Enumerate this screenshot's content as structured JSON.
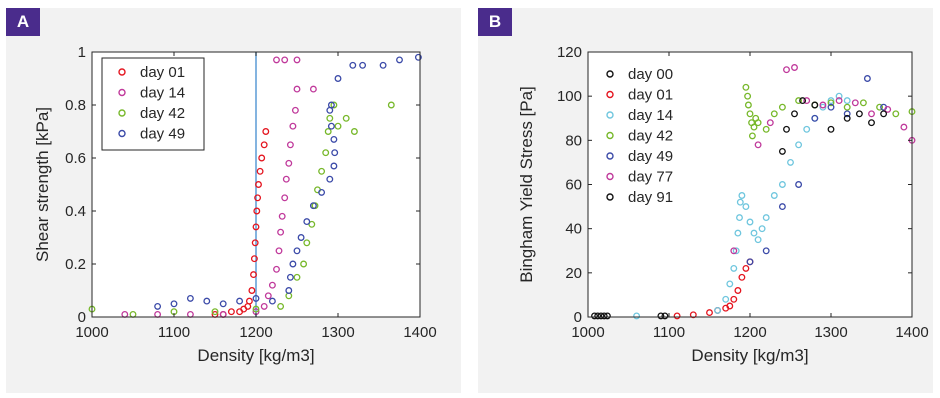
{
  "chart_data": [
    {
      "panel_label": "A",
      "type": "scatter",
      "xlabel": "Density [kg/m3]",
      "ylabel": "Shear strength [kPa]",
      "xlim": [
        1000,
        1400
      ],
      "ylim": [
        0,
        1
      ],
      "xticks": [
        1000,
        1100,
        1200,
        1300,
        1400
      ],
      "yticks": [
        0,
        0.2,
        0.4,
        0.6,
        0.8,
        1
      ],
      "xtick_labels": [
        "1000",
        "1100",
        "1200",
        "1300",
        "1400"
      ],
      "ytick_labels": [
        "0",
        "0.2",
        "0.4",
        "0.6",
        "0.8",
        "1"
      ],
      "grid": false,
      "legend_position": "top-left",
      "vline_x": 1200,
      "vline_color": "#5b9bd5",
      "series": [
        {
          "name": "day 01",
          "color": "#e4151f",
          "points": [
            [
              1150,
              0.01
            ],
            [
              1160,
              0.01
            ],
            [
              1170,
              0.02
            ],
            [
              1180,
              0.02
            ],
            [
              1185,
              0.03
            ],
            [
              1190,
              0.04
            ],
            [
              1192,
              0.06
            ],
            [
              1195,
              0.1
            ],
            [
              1197,
              0.16
            ],
            [
              1198,
              0.22
            ],
            [
              1199,
              0.28
            ],
            [
              1200,
              0.34
            ],
            [
              1201,
              0.4
            ],
            [
              1202,
              0.45
            ],
            [
              1203,
              0.5
            ],
            [
              1205,
              0.55
            ],
            [
              1207,
              0.6
            ],
            [
              1210,
              0.65
            ],
            [
              1212,
              0.7
            ]
          ]
        },
        {
          "name": "day 14",
          "color": "#c0399b",
          "points": [
            [
              1040,
              0.01
            ],
            [
              1080,
              0.01
            ],
            [
              1120,
              0.01
            ],
            [
              1160,
              0.01
            ],
            [
              1200,
              0.02
            ],
            [
              1210,
              0.04
            ],
            [
              1215,
              0.08
            ],
            [
              1220,
              0.12
            ],
            [
              1225,
              0.18
            ],
            [
              1228,
              0.25
            ],
            [
              1230,
              0.32
            ],
            [
              1232,
              0.38
            ],
            [
              1235,
              0.45
            ],
            [
              1237,
              0.52
            ],
            [
              1240,
              0.58
            ],
            [
              1242,
              0.65
            ],
            [
              1245,
              0.72
            ],
            [
              1248,
              0.78
            ],
            [
              1250,
              0.86
            ],
            [
              1225,
              0.97
            ],
            [
              1235,
              0.97
            ],
            [
              1270,
              0.86
            ],
            [
              1250,
              0.97
            ]
          ]
        },
        {
          "name": "day 42",
          "color": "#77b82a",
          "points": [
            [
              1000,
              0.03
            ],
            [
              1050,
              0.01
            ],
            [
              1100,
              0.02
            ],
            [
              1150,
              0.02
            ],
            [
              1200,
              0.03
            ],
            [
              1230,
              0.04
            ],
            [
              1240,
              0.08
            ],
            [
              1250,
              0.15
            ],
            [
              1258,
              0.2
            ],
            [
              1262,
              0.28
            ],
            [
              1268,
              0.35
            ],
            [
              1272,
              0.42
            ],
            [
              1275,
              0.48
            ],
            [
              1280,
              0.55
            ],
            [
              1285,
              0.62
            ],
            [
              1288,
              0.7
            ],
            [
              1290,
              0.75
            ],
            [
              1295,
              0.8
            ],
            [
              1300,
              0.72
            ],
            [
              1310,
              0.75
            ],
            [
              1320,
              0.7
            ],
            [
              1365,
              0.8
            ]
          ]
        },
        {
          "name": "day 49",
          "color": "#3b4aa8",
          "points": [
            [
              1080,
              0.04
            ],
            [
              1100,
              0.05
            ],
            [
              1120,
              0.07
            ],
            [
              1140,
              0.06
            ],
            [
              1160,
              0.05
            ],
            [
              1180,
              0.06
            ],
            [
              1200,
              0.07
            ],
            [
              1220,
              0.06
            ],
            [
              1240,
              0.1
            ],
            [
              1242,
              0.15
            ],
            [
              1245,
              0.2
            ],
            [
              1250,
              0.25
            ],
            [
              1255,
              0.3
            ],
            [
              1262,
              0.36
            ],
            [
              1270,
              0.42
            ],
            [
              1280,
              0.47
            ],
            [
              1290,
              0.52
            ],
            [
              1295,
              0.57
            ],
            [
              1296,
              0.62
            ],
            [
              1295,
              0.67
            ],
            [
              1292,
              0.72
            ],
            [
              1290,
              0.78
            ],
            [
              1292,
              0.8
            ],
            [
              1300,
              0.9
            ],
            [
              1318,
              0.95
            ],
            [
              1330,
              0.95
            ],
            [
              1355,
              0.95
            ],
            [
              1375,
              0.97
            ],
            [
              1398,
              0.98
            ]
          ]
        }
      ]
    },
    {
      "panel_label": "B",
      "type": "scatter",
      "xlabel": "Density [kg/m3]",
      "ylabel": "Bingham Yield Stress [Pa]",
      "xlim": [
        1000,
        1400
      ],
      "ylim": [
        0,
        120
      ],
      "xticks": [
        1000,
        1100,
        1200,
        1300,
        1400
      ],
      "yticks": [
        0,
        20,
        40,
        60,
        80,
        100,
        120
      ],
      "xtick_labels": [
        "1000",
        "1100",
        "1200",
        "1300",
        "1400"
      ],
      "ytick_labels": [
        "0",
        "20",
        "40",
        "60",
        "80",
        "100",
        "120"
      ],
      "grid": false,
      "legend_position": "top-left",
      "series": [
        {
          "name": "day 00",
          "color": "#111111",
          "points": [
            [
              1008,
              0.5
            ],
            [
              1012,
              0.5
            ],
            [
              1016,
              0.5
            ],
            [
              1020,
              0.5
            ],
            [
              1024,
              0.5
            ],
            [
              1090,
              0.5
            ],
            [
              1095,
              0.5
            ]
          ]
        },
        {
          "name": "day 01",
          "color": "#e4151f",
          "points": [
            [
              1110,
              0.5
            ],
            [
              1130,
              1
            ],
            [
              1150,
              2
            ],
            [
              1160,
              3
            ],
            [
              1170,
              4
            ],
            [
              1175,
              5
            ],
            [
              1180,
              8
            ],
            [
              1185,
              12
            ],
            [
              1190,
              18
            ],
            [
              1195,
              22
            ],
            [
              1200,
              25
            ]
          ]
        },
        {
          "name": "day 14",
          "color": "#6fc6de",
          "points": [
            [
              1060,
              0.5
            ],
            [
              1160,
              3
            ],
            [
              1170,
              8
            ],
            [
              1175,
              15
            ],
            [
              1180,
              22
            ],
            [
              1183,
              30
            ],
            [
              1185,
              38
            ],
            [
              1187,
              45
            ],
            [
              1188,
              52
            ],
            [
              1190,
              55
            ],
            [
              1195,
              50
            ],
            [
              1200,
              43
            ],
            [
              1205,
              38
            ],
            [
              1210,
              35
            ],
            [
              1215,
              40
            ],
            [
              1220,
              45
            ],
            [
              1230,
              55
            ],
            [
              1240,
              60
            ],
            [
              1250,
              70
            ],
            [
              1260,
              78
            ],
            [
              1270,
              85
            ],
            [
              1280,
              90
            ],
            [
              1290,
              95
            ],
            [
              1300,
              98
            ],
            [
              1310,
              100
            ],
            [
              1320,
              98
            ]
          ]
        },
        {
          "name": "day 42",
          "color": "#77b82a",
          "points": [
            [
              1195,
              104
            ],
            [
              1197,
              100
            ],
            [
              1198,
              96
            ],
            [
              1200,
              92
            ],
            [
              1202,
              88
            ],
            [
              1203,
              82
            ],
            [
              1205,
              86
            ],
            [
              1207,
              90
            ],
            [
              1210,
              88
            ],
            [
              1220,
              85
            ],
            [
              1230,
              92
            ],
            [
              1240,
              95
            ],
            [
              1260,
              98
            ],
            [
              1280,
              96
            ],
            [
              1300,
              97
            ],
            [
              1320,
              95
            ],
            [
              1340,
              97
            ],
            [
              1360,
              95
            ],
            [
              1380,
              92
            ],
            [
              1400,
              93
            ]
          ]
        },
        {
          "name": "day 49",
          "color": "#3b4aa8",
          "points": [
            [
              1200,
              25
            ],
            [
              1220,
              30
            ],
            [
              1240,
              50
            ],
            [
              1260,
              60
            ],
            [
              1280,
              90
            ],
            [
              1300,
              95
            ],
            [
              1320,
              92
            ],
            [
              1345,
              108
            ],
            [
              1365,
              95
            ]
          ]
        },
        {
          "name": "day 77",
          "color": "#c0399b",
          "points": [
            [
              1180,
              30
            ],
            [
              1210,
              78
            ],
            [
              1225,
              88
            ],
            [
              1245,
              112
            ],
            [
              1255,
              113
            ],
            [
              1270,
              98
            ],
            [
              1290,
              96
            ],
            [
              1310,
              98
            ],
            [
              1330,
              97
            ],
            [
              1350,
              92
            ],
            [
              1370,
              94
            ],
            [
              1390,
              86
            ],
            [
              1400,
              80
            ]
          ]
        },
        {
          "name": "day 91",
          "color": "#111111",
          "points": [
            [
              1240,
              75
            ],
            [
              1245,
              85
            ],
            [
              1255,
              92
            ],
            [
              1265,
              98
            ],
            [
              1280,
              96
            ],
            [
              1300,
              85
            ],
            [
              1320,
              90
            ],
            [
              1335,
              92
            ],
            [
              1350,
              88
            ],
            [
              1365,
              92
            ]
          ]
        }
      ]
    }
  ]
}
